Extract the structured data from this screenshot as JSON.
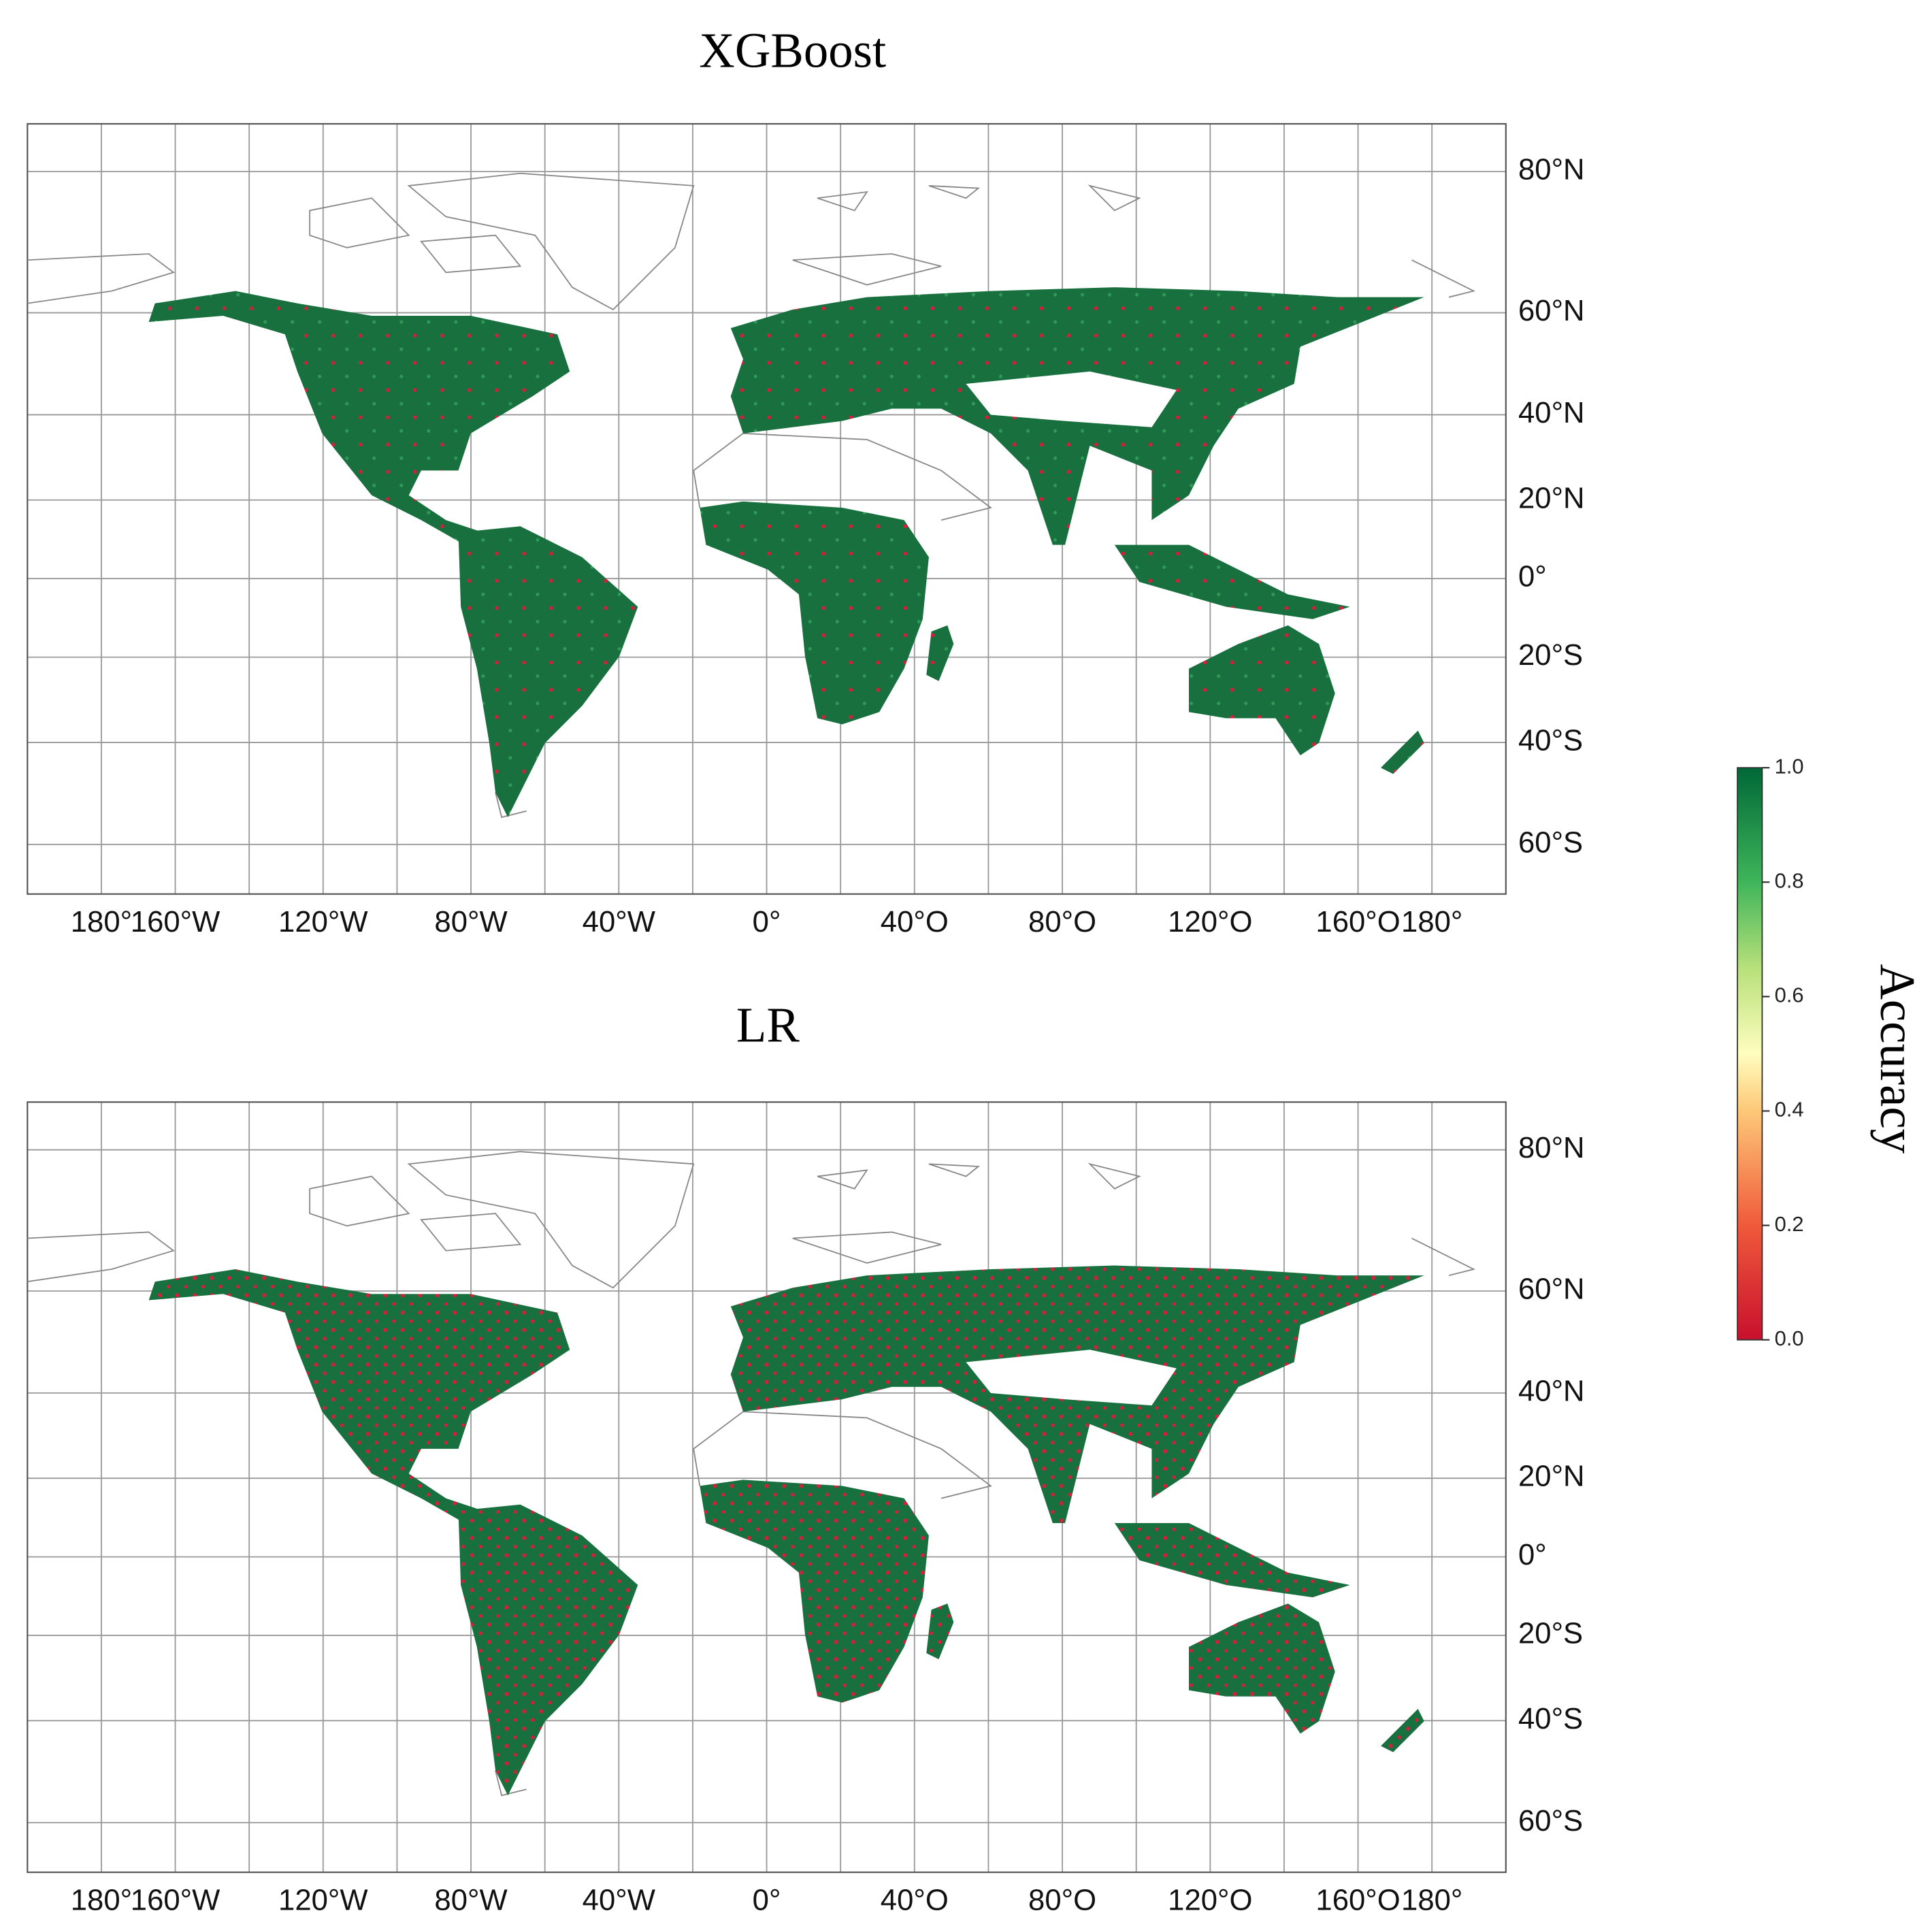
{
  "panels": [
    {
      "title": "XGBoost",
      "xlim": [
        -200,
        200
      ],
      "ylim": [
        -68,
        85
      ],
      "xticks": [
        {
          "value": -180,
          "label": "180°"
        },
        {
          "value": -160,
          "label": "160°W"
        },
        {
          "value": -120,
          "label": "120°W"
        },
        {
          "value": -80,
          "label": "80°W"
        },
        {
          "value": -40,
          "label": "40°W"
        },
        {
          "value": 0,
          "label": "0°"
        },
        {
          "value": 40,
          "label": "40°O"
        },
        {
          "value": 80,
          "label": "80°O"
        },
        {
          "value": 120,
          "label": "120°O"
        },
        {
          "value": 160,
          "label": "160°O"
        },
        {
          "value": 180,
          "label": "180°"
        }
      ],
      "yticks": [
        {
          "value": 80,
          "label": "80°N"
        },
        {
          "value": 60,
          "label": "60°N"
        },
        {
          "value": 40,
          "label": "40°N"
        },
        {
          "value": 20,
          "label": "20°N"
        },
        {
          "value": 0,
          "label": "0°"
        },
        {
          "value": -20,
          "label": "20°S"
        },
        {
          "value": -40,
          "label": "40°S"
        },
        {
          "value": -60,
          "label": "60°S"
        }
      ]
    },
    {
      "title": "LR",
      "xlim": [
        -200,
        200
      ],
      "ylim": [
        -68,
        85
      ],
      "xticks": [
        {
          "value": -180,
          "label": "180°"
        },
        {
          "value": -160,
          "label": "160°W"
        },
        {
          "value": -120,
          "label": "120°W"
        },
        {
          "value": -80,
          "label": "80°W"
        },
        {
          "value": -40,
          "label": "40°W"
        },
        {
          "value": 0,
          "label": "0°"
        },
        {
          "value": 40,
          "label": "40°O"
        },
        {
          "value": 80,
          "label": "80°O"
        },
        {
          "value": 120,
          "label": "120°O"
        },
        {
          "value": 160,
          "label": "160°O"
        },
        {
          "value": 180,
          "label": "180°"
        }
      ],
      "yticks": [
        {
          "value": 80,
          "label": "80°N"
        },
        {
          "value": 60,
          "label": "60°N"
        },
        {
          "value": 40,
          "label": "40°N"
        },
        {
          "value": 20,
          "label": "20°N"
        },
        {
          "value": 0,
          "label": "0°"
        },
        {
          "value": -20,
          "label": "20°S"
        },
        {
          "value": -40,
          "label": "40°S"
        },
        {
          "value": -60,
          "label": "60°S"
        }
      ]
    }
  ],
  "colorbar": {
    "label": "Accuracy",
    "lim": [
      0,
      1
    ],
    "ticks": [
      {
        "value": 0,
        "label": "0.0"
      },
      {
        "value": 0.2,
        "label": "0.2"
      },
      {
        "value": 0.4,
        "label": "0.4"
      },
      {
        "value": 0.6,
        "label": "0.6"
      },
      {
        "value": 0.8,
        "label": "0.8"
      },
      {
        "value": 1,
        "label": "1.0"
      }
    ]
  }
}
